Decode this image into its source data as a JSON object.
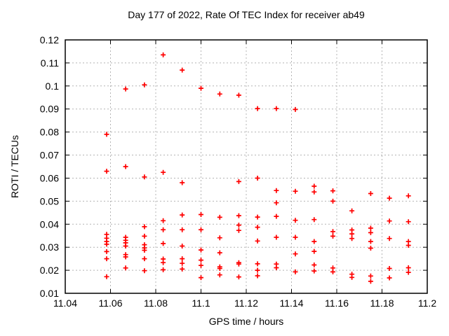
{
  "colors": {
    "marker": "#ff0000",
    "grid": "#b4b4b4",
    "border": "#000000",
    "background": "#ffffff"
  },
  "chart_data": {
    "type": "scatter",
    "title": "Day 177 of 2022, Rate Of TEC Index for receiver ab49",
    "xlabel": "GPS time / hours",
    "ylabel": "ROTI / TECUs",
    "xlim": [
      11.04,
      11.2
    ],
    "ylim": [
      0.01,
      0.12
    ],
    "x_tick_labels": [
      "11.04",
      "11.06",
      "11.08",
      "11.1",
      "11.12",
      "11.14",
      "11.16",
      "11.18",
      "11.2"
    ],
    "y_tick_labels": [
      "0.01",
      "0.02",
      "0.03",
      "0.04",
      "0.05",
      "0.06",
      "0.07",
      "0.08",
      "0.09",
      "0.1",
      "0.11",
      "0.12"
    ],
    "grid": true,
    "legend": "none",
    "series": [
      {
        "name": "ROTI",
        "marker": "plus",
        "color": "#ff0000",
        "points": [
          [
            11.0583,
            0.079
          ],
          [
            11.0583,
            0.063
          ],
          [
            11.0583,
            0.0356
          ],
          [
            11.0583,
            0.0339
          ],
          [
            11.0583,
            0.0325
          ],
          [
            11.0583,
            0.0313
          ],
          [
            11.0583,
            0.0281
          ],
          [
            11.0583,
            0.025
          ],
          [
            11.0583,
            0.0172
          ],
          [
            11.0667,
            0.0987
          ],
          [
            11.0667,
            0.065
          ],
          [
            11.0667,
            0.0343
          ],
          [
            11.0667,
            0.033
          ],
          [
            11.0667,
            0.0319
          ],
          [
            11.0667,
            0.0305
          ],
          [
            11.0667,
            0.0268
          ],
          [
            11.0667,
            0.0258
          ],
          [
            11.0667,
            0.021
          ],
          [
            11.075,
            0.1005
          ],
          [
            11.075,
            0.0605
          ],
          [
            11.075,
            0.0389
          ],
          [
            11.075,
            0.0348
          ],
          [
            11.075,
            0.0311
          ],
          [
            11.075,
            0.0297
          ],
          [
            11.075,
            0.0287
          ],
          [
            11.075,
            0.025
          ],
          [
            11.075,
            0.0198
          ],
          [
            11.0833,
            0.1135
          ],
          [
            11.0833,
            0.0625
          ],
          [
            11.0833,
            0.0415
          ],
          [
            11.0833,
            0.0376
          ],
          [
            11.0833,
            0.0316
          ],
          [
            11.0833,
            0.0249
          ],
          [
            11.0833,
            0.0233
          ],
          [
            11.0833,
            0.0202
          ],
          [
            11.0917,
            0.1069
          ],
          [
            11.0917,
            0.058
          ],
          [
            11.0917,
            0.044
          ],
          [
            11.0917,
            0.0376
          ],
          [
            11.0917,
            0.0305
          ],
          [
            11.0917,
            0.025
          ],
          [
            11.0917,
            0.023
          ],
          [
            11.0917,
            0.0205
          ],
          [
            11.1,
            0.099
          ],
          [
            11.1,
            0.0442
          ],
          [
            11.1,
            0.0376
          ],
          [
            11.1,
            0.0288
          ],
          [
            11.1,
            0.0244
          ],
          [
            11.1,
            0.0221
          ],
          [
            11.1,
            0.0168
          ],
          [
            11.1083,
            0.0965
          ],
          [
            11.1083,
            0.043
          ],
          [
            11.1083,
            0.0341
          ],
          [
            11.1083,
            0.0276
          ],
          [
            11.1083,
            0.0215
          ],
          [
            11.1083,
            0.0208
          ],
          [
            11.1083,
            0.018
          ],
          [
            11.1167,
            0.096
          ],
          [
            11.1167,
            0.0585
          ],
          [
            11.1167,
            0.0437
          ],
          [
            11.1167,
            0.0396
          ],
          [
            11.1167,
            0.0373
          ],
          [
            11.1167,
            0.0233
          ],
          [
            11.1167,
            0.0227
          ],
          [
            11.1167,
            0.0171
          ],
          [
            11.125,
            0.0902
          ],
          [
            11.125,
            0.06
          ],
          [
            11.125,
            0.0431
          ],
          [
            11.125,
            0.0387
          ],
          [
            11.125,
            0.0327
          ],
          [
            11.125,
            0.0228
          ],
          [
            11.125,
            0.02
          ],
          [
            11.125,
            0.0176
          ],
          [
            11.1333,
            0.0902
          ],
          [
            11.1333,
            0.0546
          ],
          [
            11.1333,
            0.0493
          ],
          [
            11.1333,
            0.0434
          ],
          [
            11.1333,
            0.0343
          ],
          [
            11.1333,
            0.0227
          ],
          [
            11.1333,
            0.0211
          ],
          [
            11.1417,
            0.0898
          ],
          [
            11.1417,
            0.0543
          ],
          [
            11.1417,
            0.0417
          ],
          [
            11.1417,
            0.0343
          ],
          [
            11.1417,
            0.0271
          ],
          [
            11.1417,
            0.0193
          ],
          [
            11.15,
            0.0565
          ],
          [
            11.15,
            0.054
          ],
          [
            11.15,
            0.042
          ],
          [
            11.15,
            0.0325
          ],
          [
            11.15,
            0.0282
          ],
          [
            11.15,
            0.0223
          ],
          [
            11.15,
            0.0197
          ],
          [
            11.1583,
            0.0545
          ],
          [
            11.1583,
            0.05
          ],
          [
            11.1583,
            0.0368
          ],
          [
            11.1583,
            0.0348
          ],
          [
            11.1583,
            0.021
          ],
          [
            11.1583,
            0.0193
          ],
          [
            11.1667,
            0.0458
          ],
          [
            11.1667,
            0.0375
          ],
          [
            11.1667,
            0.0358
          ],
          [
            11.1667,
            0.0338
          ],
          [
            11.1667,
            0.0183
          ],
          [
            11.1667,
            0.0169
          ],
          [
            11.175,
            0.0533
          ],
          [
            11.175,
            0.0383
          ],
          [
            11.175,
            0.0363
          ],
          [
            11.175,
            0.0325
          ],
          [
            11.175,
            0.0296
          ],
          [
            11.175,
            0.0175
          ],
          [
            11.175,
            0.0152
          ],
          [
            11.1833,
            0.0513
          ],
          [
            11.1833,
            0.0414
          ],
          [
            11.1833,
            0.0338
          ],
          [
            11.1833,
            0.0208
          ],
          [
            11.1833,
            0.0167
          ],
          [
            11.1917,
            0.0523
          ],
          [
            11.1917,
            0.0411
          ],
          [
            11.1917,
            0.0325
          ],
          [
            11.1917,
            0.0308
          ],
          [
            11.1917,
            0.0211
          ],
          [
            11.1917,
            0.0191
          ]
        ]
      }
    ]
  }
}
